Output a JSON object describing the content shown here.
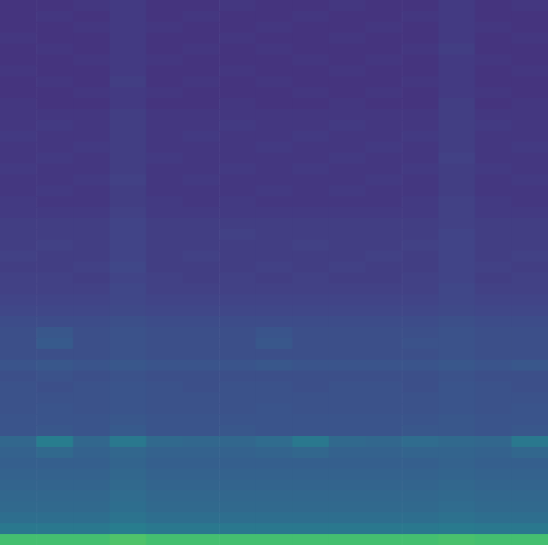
{
  "chart_data": {
    "type": "heatmap",
    "tick_labels": false,
    "zlim": [
      0,
      1
    ],
    "cells": [
      [
        0.15,
        0.15,
        0.16,
        0.17,
        0.15,
        0.15,
        0.16,
        0.15,
        0.15,
        0.16,
        0.15,
        0.15,
        0.17,
        0.15,
        0.16
      ],
      [
        0.15,
        0.16,
        0.15,
        0.17,
        0.15,
        0.16,
        0.15,
        0.15,
        0.16,
        0.15,
        0.15,
        0.16,
        0.17,
        0.15,
        0.15
      ],
      [
        0.15,
        0.15,
        0.16,
        0.17,
        0.16,
        0.15,
        0.15,
        0.16,
        0.15,
        0.15,
        0.16,
        0.15,
        0.17,
        0.16,
        0.15
      ],
      [
        0.16,
        0.15,
        0.15,
        0.17,
        0.15,
        0.15,
        0.16,
        0.15,
        0.15,
        0.16,
        0.15,
        0.15,
        0.17,
        0.15,
        0.16
      ],
      [
        0.15,
        0.16,
        0.15,
        0.17,
        0.15,
        0.16,
        0.15,
        0.16,
        0.15,
        0.15,
        0.15,
        0.16,
        0.18,
        0.15,
        0.15
      ],
      [
        0.15,
        0.15,
        0.16,
        0.17,
        0.16,
        0.15,
        0.15,
        0.15,
        0.16,
        0.15,
        0.16,
        0.15,
        0.17,
        0.16,
        0.15
      ],
      [
        0.16,
        0.15,
        0.15,
        0.17,
        0.15,
        0.15,
        0.16,
        0.15,
        0.15,
        0.16,
        0.15,
        0.15,
        0.17,
        0.15,
        0.16
      ],
      [
        0.15,
        0.16,
        0.15,
        0.18,
        0.15,
        0.16,
        0.15,
        0.16,
        0.15,
        0.15,
        0.15,
        0.16,
        0.17,
        0.15,
        0.15
      ],
      [
        0.15,
        0.15,
        0.16,
        0.17,
        0.16,
        0.15,
        0.15,
        0.15,
        0.16,
        0.15,
        0.16,
        0.15,
        0.17,
        0.16,
        0.15
      ],
      [
        0.16,
        0.15,
        0.15,
        0.17,
        0.15,
        0.15,
        0.16,
        0.15,
        0.15,
        0.16,
        0.15,
        0.15,
        0.18,
        0.15,
        0.16
      ],
      [
        0.16,
        0.16,
        0.16,
        0.18,
        0.16,
        0.16,
        0.16,
        0.16,
        0.16,
        0.16,
        0.16,
        0.16,
        0.18,
        0.16,
        0.16
      ],
      [
        0.16,
        0.17,
        0.16,
        0.18,
        0.16,
        0.16,
        0.17,
        0.16,
        0.16,
        0.17,
        0.16,
        0.16,
        0.18,
        0.17,
        0.16
      ],
      [
        0.17,
        0.16,
        0.16,
        0.18,
        0.16,
        0.17,
        0.16,
        0.16,
        0.17,
        0.16,
        0.16,
        0.17,
        0.18,
        0.16,
        0.16
      ],
      [
        0.16,
        0.16,
        0.17,
        0.18,
        0.16,
        0.16,
        0.16,
        0.17,
        0.16,
        0.16,
        0.17,
        0.16,
        0.18,
        0.16,
        0.17
      ],
      [
        0.16,
        0.17,
        0.16,
        0.18,
        0.17,
        0.16,
        0.16,
        0.16,
        0.16,
        0.17,
        0.16,
        0.16,
        0.19,
        0.16,
        0.16
      ],
      [
        0.17,
        0.16,
        0.16,
        0.18,
        0.16,
        0.16,
        0.17,
        0.16,
        0.17,
        0.16,
        0.16,
        0.17,
        0.18,
        0.17,
        0.16
      ],
      [
        0.16,
        0.16,
        0.17,
        0.19,
        0.16,
        0.17,
        0.16,
        0.16,
        0.16,
        0.16,
        0.17,
        0.16,
        0.18,
        0.16,
        0.17
      ],
      [
        0.16,
        0.17,
        0.16,
        0.18,
        0.16,
        0.16,
        0.16,
        0.17,
        0.16,
        0.17,
        0.16,
        0.16,
        0.18,
        0.16,
        0.16
      ],
      [
        0.17,
        0.16,
        0.16,
        0.18,
        0.17,
        0.16,
        0.17,
        0.16,
        0.16,
        0.16,
        0.16,
        0.17,
        0.19,
        0.17,
        0.16
      ],
      [
        0.17,
        0.17,
        0.17,
        0.19,
        0.17,
        0.17,
        0.17,
        0.17,
        0.17,
        0.17,
        0.17,
        0.17,
        0.19,
        0.17,
        0.17
      ],
      [
        0.18,
        0.18,
        0.18,
        0.2,
        0.18,
        0.18,
        0.18,
        0.18,
        0.18,
        0.18,
        0.18,
        0.18,
        0.19,
        0.18,
        0.18
      ],
      [
        0.18,
        0.18,
        0.18,
        0.2,
        0.18,
        0.18,
        0.19,
        0.18,
        0.18,
        0.18,
        0.18,
        0.18,
        0.2,
        0.18,
        0.18
      ],
      [
        0.18,
        0.19,
        0.18,
        0.2,
        0.18,
        0.18,
        0.18,
        0.18,
        0.19,
        0.18,
        0.18,
        0.19,
        0.2,
        0.18,
        0.18
      ],
      [
        0.19,
        0.18,
        0.18,
        0.2,
        0.18,
        0.19,
        0.18,
        0.18,
        0.18,
        0.18,
        0.19,
        0.18,
        0.2,
        0.18,
        0.19
      ],
      [
        0.18,
        0.18,
        0.19,
        0.21,
        0.18,
        0.18,
        0.18,
        0.19,
        0.18,
        0.19,
        0.18,
        0.18,
        0.2,
        0.19,
        0.18
      ],
      [
        0.19,
        0.19,
        0.18,
        0.2,
        0.19,
        0.18,
        0.19,
        0.18,
        0.19,
        0.18,
        0.18,
        0.19,
        0.2,
        0.18,
        0.19
      ],
      [
        0.19,
        0.19,
        0.19,
        0.21,
        0.19,
        0.19,
        0.19,
        0.19,
        0.19,
        0.19,
        0.19,
        0.19,
        0.21,
        0.19,
        0.19
      ],
      [
        0.2,
        0.2,
        0.2,
        0.21,
        0.2,
        0.2,
        0.2,
        0.2,
        0.2,
        0.2,
        0.2,
        0.2,
        0.21,
        0.2,
        0.2
      ],
      [
        0.21,
        0.21,
        0.21,
        0.22,
        0.21,
        0.21,
        0.21,
        0.21,
        0.21,
        0.21,
        0.21,
        0.21,
        0.22,
        0.21,
        0.21
      ],
      [
        0.23,
        0.23,
        0.23,
        0.24,
        0.23,
        0.23,
        0.23,
        0.23,
        0.23,
        0.23,
        0.23,
        0.23,
        0.24,
        0.23,
        0.23
      ],
      [
        0.24,
        0.27,
        0.24,
        0.25,
        0.24,
        0.24,
        0.24,
        0.26,
        0.24,
        0.24,
        0.24,
        0.24,
        0.25,
        0.24,
        0.24
      ],
      [
        0.24,
        0.28,
        0.24,
        0.25,
        0.24,
        0.24,
        0.24,
        0.27,
        0.24,
        0.24,
        0.24,
        0.25,
        0.25,
        0.24,
        0.24
      ],
      [
        0.24,
        0.24,
        0.24,
        0.25,
        0.24,
        0.24,
        0.24,
        0.24,
        0.24,
        0.24,
        0.24,
        0.24,
        0.25,
        0.24,
        0.24
      ],
      [
        0.26,
        0.27,
        0.26,
        0.27,
        0.26,
        0.26,
        0.26,
        0.27,
        0.26,
        0.26,
        0.26,
        0.26,
        0.27,
        0.26,
        0.27
      ],
      [
        0.24,
        0.25,
        0.24,
        0.25,
        0.24,
        0.24,
        0.24,
        0.24,
        0.24,
        0.24,
        0.24,
        0.24,
        0.25,
        0.24,
        0.24
      ],
      [
        0.25,
        0.24,
        0.25,
        0.26,
        0.25,
        0.24,
        0.25,
        0.25,
        0.24,
        0.25,
        0.25,
        0.24,
        0.26,
        0.25,
        0.24
      ],
      [
        0.25,
        0.25,
        0.25,
        0.26,
        0.25,
        0.25,
        0.25,
        0.25,
        0.25,
        0.25,
        0.25,
        0.25,
        0.26,
        0.25,
        0.25
      ],
      [
        0.25,
        0.26,
        0.25,
        0.26,
        0.25,
        0.25,
        0.25,
        0.26,
        0.25,
        0.25,
        0.25,
        0.25,
        0.26,
        0.25,
        0.26
      ],
      [
        0.26,
        0.26,
        0.26,
        0.27,
        0.26,
        0.26,
        0.26,
        0.26,
        0.26,
        0.26,
        0.26,
        0.26,
        0.27,
        0.26,
        0.26
      ],
      [
        0.26,
        0.27,
        0.26,
        0.28,
        0.26,
        0.26,
        0.27,
        0.26,
        0.26,
        0.26,
        0.26,
        0.27,
        0.27,
        0.26,
        0.27
      ],
      [
        0.33,
        0.42,
        0.33,
        0.4,
        0.34,
        0.33,
        0.33,
        0.35,
        0.4,
        0.34,
        0.33,
        0.35,
        0.34,
        0.33,
        0.4
      ],
      [
        0.31,
        0.34,
        0.31,
        0.33,
        0.31,
        0.31,
        0.31,
        0.32,
        0.33,
        0.31,
        0.31,
        0.32,
        0.32,
        0.31,
        0.33
      ],
      [
        0.3,
        0.3,
        0.3,
        0.32,
        0.3,
        0.3,
        0.3,
        0.3,
        0.3,
        0.3,
        0.3,
        0.3,
        0.31,
        0.3,
        0.3
      ],
      [
        0.31,
        0.31,
        0.31,
        0.33,
        0.31,
        0.31,
        0.31,
        0.31,
        0.31,
        0.31,
        0.31,
        0.31,
        0.32,
        0.31,
        0.31
      ],
      [
        0.32,
        0.32,
        0.32,
        0.34,
        0.32,
        0.32,
        0.32,
        0.32,
        0.32,
        0.32,
        0.32,
        0.32,
        0.33,
        0.32,
        0.32
      ],
      [
        0.33,
        0.33,
        0.33,
        0.35,
        0.33,
        0.33,
        0.33,
        0.33,
        0.33,
        0.33,
        0.33,
        0.33,
        0.34,
        0.33,
        0.33
      ],
      [
        0.34,
        0.34,
        0.34,
        0.36,
        0.34,
        0.34,
        0.34,
        0.34,
        0.34,
        0.34,
        0.34,
        0.34,
        0.35,
        0.34,
        0.34
      ],
      [
        0.36,
        0.36,
        0.36,
        0.38,
        0.36,
        0.36,
        0.36,
        0.36,
        0.36,
        0.36,
        0.36,
        0.36,
        0.37,
        0.36,
        0.36
      ],
      [
        0.4,
        0.4,
        0.4,
        0.42,
        0.4,
        0.4,
        0.4,
        0.4,
        0.4,
        0.4,
        0.4,
        0.4,
        0.41,
        0.4,
        0.4
      ],
      [
        0.7,
        0.7,
        0.7,
        0.72,
        0.7,
        0.7,
        0.7,
        0.7,
        0.7,
        0.7,
        0.7,
        0.7,
        0.71,
        0.7,
        0.7
      ]
    ]
  }
}
